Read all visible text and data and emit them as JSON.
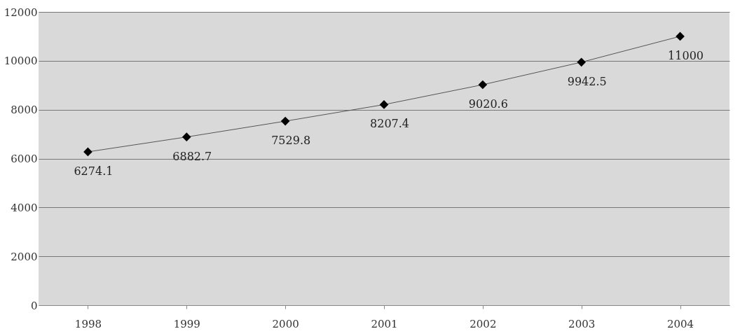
{
  "chart_data": {
    "type": "line",
    "categories": [
      "1998",
      "1999",
      "2000",
      "2001",
      "2002",
      "2003",
      "2004"
    ],
    "series": [
      {
        "color": "#000000",
        "values": [
          6274.1,
          6882.7,
          7529.8,
          8207.4,
          9020.6,
          9942.5,
          11000
        ]
      }
    ],
    "ylim": [
      0,
      12000
    ],
    "yticks": [
      0,
      2000,
      4000,
      6000,
      8000,
      10000,
      12000
    ],
    "grid": "y",
    "marker": "diamond",
    "line_style": "solid",
    "data_labels": true
  }
}
